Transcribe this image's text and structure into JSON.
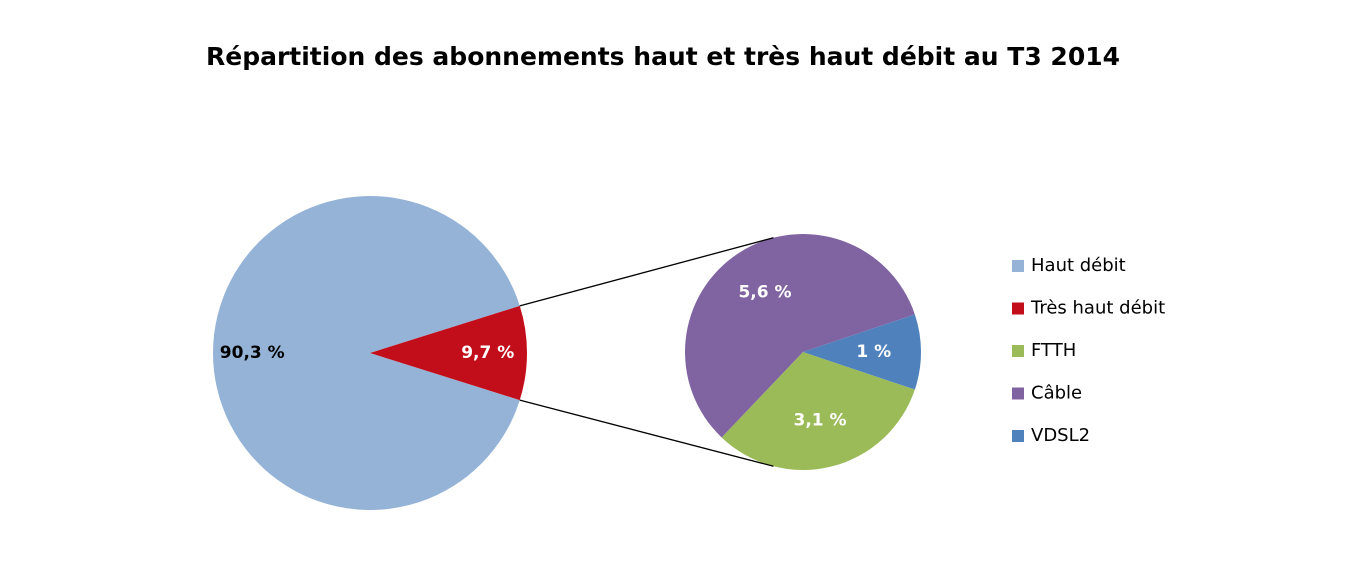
{
  "chart_data": {
    "type": "pie-of-pie",
    "title": "Répartition des abonnements haut et très haut débit au T3 2014",
    "pie": {
      "categories": [
        "Haut débit",
        "Très haut débit"
      ],
      "values": [
        90.3,
        9.7
      ],
      "value_labels": [
        "90,3 %",
        "9,7 %"
      ],
      "colors": [
        "#95b3d7",
        "#c20e1a"
      ]
    },
    "sub_pie": {
      "categories": [
        "FTTH",
        "Câble",
        "VDSL2"
      ],
      "values": [
        3.1,
        5.6,
        1
      ],
      "value_labels": [
        "3,1 %",
        "5,6 %",
        "1 %"
      ],
      "colors": [
        "#9bbb59",
        "#8064a2",
        "#4f81bd"
      ]
    }
  }
}
